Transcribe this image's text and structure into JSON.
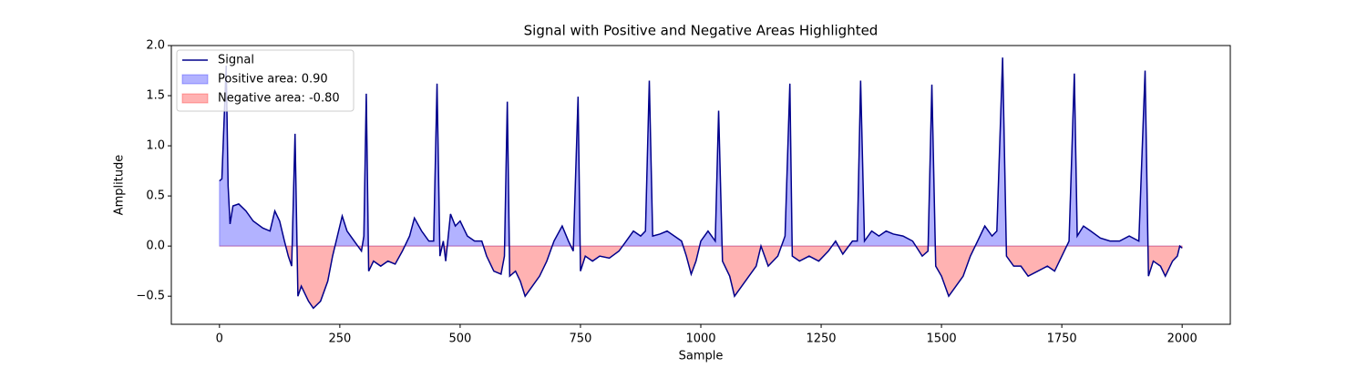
{
  "chart_data": {
    "type": "line",
    "title": "Signal with Positive and Negative Areas Highlighted",
    "x_label": "Sample",
    "y_label": "Amplitude",
    "x": [
      0,
      5,
      14,
      18,
      22,
      28,
      40,
      55,
      70,
      90,
      105,
      115,
      125,
      135,
      143,
      150,
      157,
      163,
      170,
      185,
      195,
      210,
      225,
      235,
      245,
      255,
      265,
      280,
      295,
      300,
      305,
      310,
      320,
      335,
      350,
      365,
      380,
      395,
      405,
      420,
      435,
      445,
      452,
      458,
      465,
      470,
      480,
      490,
      500,
      515,
      530,
      545,
      555,
      570,
      585,
      592,
      598,
      603,
      615,
      625,
      635,
      650,
      665,
      680,
      695,
      712,
      725,
      735,
      745,
      750,
      760,
      775,
      790,
      810,
      830,
      845,
      860,
      875,
      885,
      893,
      900,
      915,
      930,
      945,
      960,
      970,
      980,
      990,
      1000,
      1015,
      1030,
      1037,
      1045,
      1060,
      1070,
      1085,
      1100,
      1115,
      1125,
      1140,
      1160,
      1175,
      1185,
      1190,
      1205,
      1225,
      1245,
      1265,
      1280,
      1295,
      1315,
      1325,
      1332,
      1340,
      1355,
      1370,
      1385,
      1400,
      1420,
      1440,
      1460,
      1472,
      1480,
      1488,
      1500,
      1515,
      1530,
      1545,
      1560,
      1575,
      1590,
      1605,
      1615,
      1627,
      1635,
      1650,
      1665,
      1680,
      1700,
      1720,
      1735,
      1750,
      1765,
      1776,
      1782,
      1795,
      1810,
      1830,
      1850,
      1870,
      1890,
      1910,
      1923,
      1930,
      1940,
      1955,
      1965,
      1980,
      1990,
      1995,
      2000
    ],
    "series": [
      {
        "name": "Signal",
        "color": "#00008b",
        "values": [
          0.65,
          0.67,
          1.8,
          0.6,
          0.22,
          0.4,
          0.42,
          0.35,
          0.25,
          0.18,
          0.15,
          0.35,
          0.25,
          0.05,
          -0.1,
          -0.2,
          1.12,
          -0.5,
          -0.4,
          -0.55,
          -0.62,
          -0.55,
          -0.35,
          -0.1,
          0.1,
          0.3,
          0.15,
          0.05,
          -0.05,
          0.1,
          1.52,
          -0.25,
          -0.15,
          -0.2,
          -0.15,
          -0.18,
          -0.05,
          0.1,
          0.28,
          0.15,
          0.05,
          0.05,
          1.62,
          -0.1,
          0.05,
          -0.15,
          0.32,
          0.2,
          0.25,
          0.1,
          0.05,
          0.05,
          -0.1,
          -0.25,
          -0.28,
          -0.1,
          1.44,
          -0.3,
          -0.25,
          -0.35,
          -0.5,
          -0.4,
          -0.3,
          -0.15,
          0.05,
          0.2,
          0.05,
          -0.05,
          1.49,
          -0.25,
          -0.1,
          -0.15,
          -0.1,
          -0.12,
          -0.05,
          0.05,
          0.15,
          0.1,
          0.15,
          1.65,
          0.1,
          0.12,
          0.15,
          0.1,
          0.05,
          -0.1,
          -0.28,
          -0.15,
          0.05,
          0.15,
          0.05,
          1.35,
          -0.15,
          -0.3,
          -0.5,
          -0.4,
          -0.3,
          -0.2,
          0.0,
          -0.2,
          -0.1,
          0.1,
          1.62,
          -0.1,
          -0.15,
          -0.1,
          -0.15,
          -0.05,
          0.05,
          -0.08,
          0.05,
          0.05,
          1.65,
          0.05,
          0.15,
          0.1,
          0.15,
          0.12,
          0.1,
          0.05,
          -0.1,
          -0.05,
          1.61,
          -0.2,
          -0.3,
          -0.5,
          -0.4,
          -0.3,
          -0.1,
          0.05,
          0.2,
          0.1,
          0.15,
          1.88,
          -0.1,
          -0.2,
          -0.2,
          -0.3,
          -0.25,
          -0.2,
          -0.25,
          -0.1,
          0.05,
          1.72,
          0.1,
          0.2,
          0.15,
          0.08,
          0.05,
          0.05,
          0.1,
          0.05,
          1.75,
          -0.3,
          -0.15,
          -0.2,
          -0.3,
          -0.15,
          -0.1,
          0.0,
          -0.02
        ]
      }
    ],
    "fills": [
      {
        "name": "Positive area: 0.90",
        "color": "#0000ff"
      },
      {
        "name": "Negative area: -0.80",
        "color": "#ff0000"
      }
    ],
    "xlim": [
      -100,
      2100
    ],
    "ylim": [
      -0.78,
      2.0
    ],
    "xticks": [
      0,
      250,
      500,
      750,
      1000,
      1250,
      1500,
      1750,
      2000
    ],
    "yticks": [
      {
        "value": -0.5,
        "label": "−0.5"
      },
      {
        "value": 0,
        "label": "0.0"
      },
      0.5,
      {
        "value": 1,
        "label": "1.0"
      },
      1.5,
      {
        "value": 2,
        "label": "2.0"
      }
    ],
    "legend": "upper left"
  }
}
